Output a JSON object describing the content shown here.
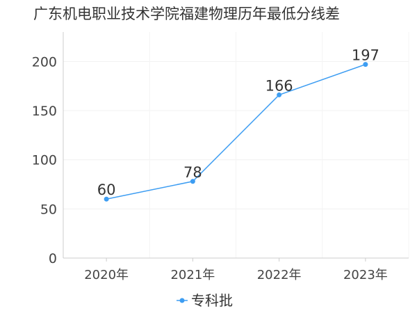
{
  "chart_data": {
    "type": "line",
    "title": "广东机电职业技术学院福建物理历年最低分线差",
    "xlabel": "",
    "ylabel": "",
    "categories": [
      "2020年",
      "2021年",
      "2022年",
      "2023年"
    ],
    "ylim": [
      0,
      230
    ],
    "yticks": [
      0,
      50,
      100,
      150,
      200
    ],
    "grid": true,
    "legend_position": "bottom",
    "series": [
      {
        "name": "专科批",
        "values": [
          60,
          78,
          166,
          197
        ],
        "color": "#3d9df2"
      }
    ]
  }
}
